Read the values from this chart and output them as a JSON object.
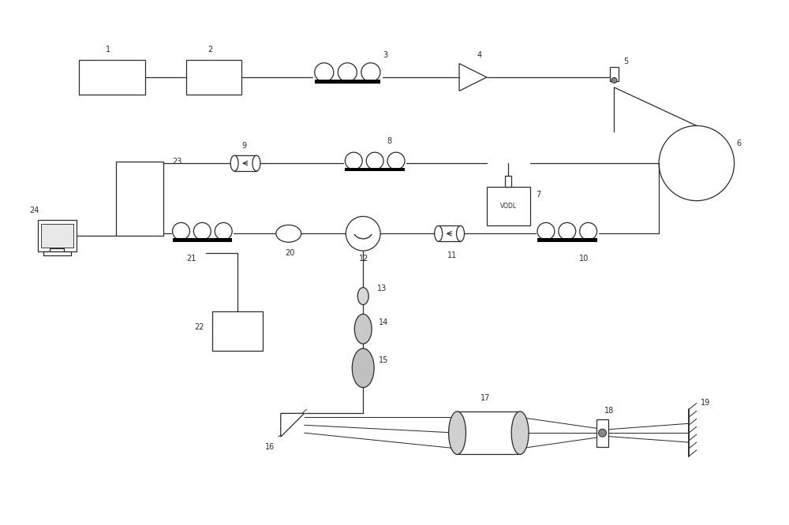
{
  "bg_color": "#ffffff",
  "line_color": "#2a2a2a",
  "fig_width": 10,
  "fig_height": 6.66,
  "dpi": 100
}
